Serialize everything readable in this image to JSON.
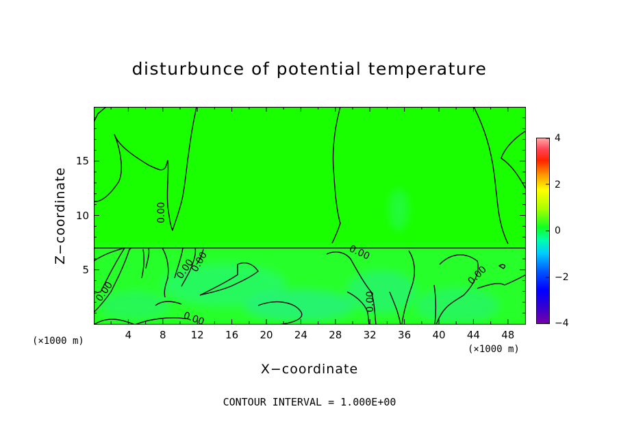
{
  "chart_data": {
    "type": "heatmap",
    "title": "disturbunce of potential temperature",
    "xlabel": "X−coordinate",
    "ylabel": "Z−coordinate",
    "x_unit_left": "(×1000 m)",
    "x_unit_right": "(×1000 m)",
    "xlim": [
      0,
      50
    ],
    "ylim": [
      0,
      20
    ],
    "x_ticks": [
      4,
      8,
      12,
      16,
      20,
      24,
      28,
      32,
      36,
      40,
      44,
      48
    ],
    "y_ticks": [
      5,
      10,
      15
    ],
    "colorbar": {
      "range": [
        -4,
        4
      ],
      "ticks": [
        -4,
        -2,
        0,
        2,
        4
      ]
    },
    "contour_labels": [
      "0.00",
      "0.00",
      "0.00",
      "0.00",
      "0.00",
      "0.00",
      "0.00",
      "0.00"
    ],
    "contour_interval_text": "CONTOUR INTERVAL = 1.000E+00",
    "colors": {
      "field_zero": "#1aff00",
      "field_low": "#33ff55",
      "field_min": "#22ee99"
    }
  }
}
